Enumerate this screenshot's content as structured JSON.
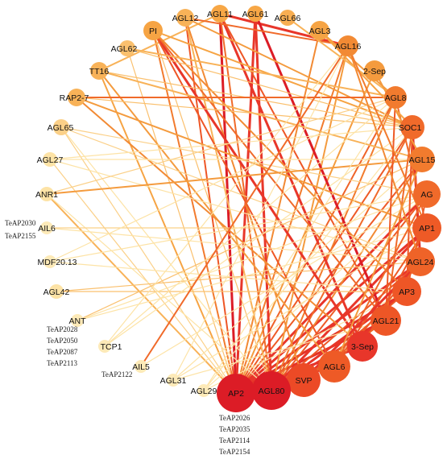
{
  "nodes": [
    {
      "id": "AGL11",
      "label": "AGL11",
      "color": "#f7a746"
    },
    {
      "id": "AGL61",
      "label": "AGL61",
      "color": "#f7a746"
    },
    {
      "id": "AGL66",
      "label": "AGL66",
      "color": "#f8ae52"
    },
    {
      "id": "AGL12",
      "label": "AGL12",
      "color": "#f8b258"
    },
    {
      "id": "PI",
      "label": "PI",
      "color": "#f6a444"
    },
    {
      "id": "AGL3",
      "label": "AGL3",
      "color": "#f6a444"
    },
    {
      "id": "AGL16",
      "label": "AGL16",
      "color": "#f28a34"
    },
    {
      "id": "AGL62",
      "label": "AGL62",
      "color": "#fac06e"
    },
    {
      "id": "2-Sep",
      "label": "2-Sep",
      "color": "#f49b3e"
    },
    {
      "id": "TT16",
      "label": "TT16",
      "color": "#f8b258"
    },
    {
      "id": "AGL8",
      "label": "AGL8",
      "color": "#f27b2e"
    },
    {
      "id": "RAP2-7",
      "label": "RAP2-7",
      "color": "#f8b258"
    },
    {
      "id": "SOC1",
      "label": "SOC1",
      "color": "#f06a2a"
    },
    {
      "id": "AGL65",
      "label": "AGL65",
      "color": "#fbd088"
    },
    {
      "id": "AGL15",
      "label": "AGL15",
      "color": "#f27b2e"
    },
    {
      "id": "AGL27",
      "label": "AGL27",
      "color": "#fde3a6"
    },
    {
      "id": "AG",
      "label": "AG",
      "color": "#f06a2a"
    },
    {
      "id": "ANR1",
      "label": "ANR1",
      "color": "#fde3a6"
    },
    {
      "id": "AP1",
      "label": "AP1",
      "color": "#ee5a26"
    },
    {
      "id": "AIL6",
      "label": "AIL6",
      "color": "#fdeab8"
    },
    {
      "id": "AGL24",
      "label": "AGL24",
      "color": "#ef6328"
    },
    {
      "id": "MDF20.13",
      "label": "MDF20.13",
      "color": "#fdeab8"
    },
    {
      "id": "AP3",
      "label": "AP3",
      "color": "#ee5626"
    },
    {
      "id": "AGL42",
      "label": "AGL42",
      "color": "#fde3a6"
    },
    {
      "id": "AGL21",
      "label": "AGL21",
      "color": "#ee5626"
    },
    {
      "id": "ANT",
      "label": "ANT",
      "color": "#fdeab8"
    },
    {
      "id": "3-Sep",
      "label": "3-Sep",
      "color": "#e8362a"
    },
    {
      "id": "TCP1",
      "label": "TCP1",
      "color": "#fdeab8"
    },
    {
      "id": "AGL6",
      "label": "AGL6",
      "color": "#ee5a26"
    },
    {
      "id": "AIL5",
      "label": "AIL5",
      "color": "#fdeab8"
    },
    {
      "id": "SVP",
      "label": "SVP",
      "color": "#ec4a26"
    },
    {
      "id": "AGL31",
      "label": "AGL31",
      "color": "#fdeab8"
    },
    {
      "id": "AGL80",
      "label": "AGL80",
      "color": "#dc1c26"
    },
    {
      "id": "AGL29",
      "label": "AGL29",
      "color": "#fdeab8"
    },
    {
      "id": "AP2",
      "label": "AP2",
      "color": "#dc1c26"
    }
  ],
  "edges": [
    [
      "AP2",
      "AGL11",
      "#dc1c26"
    ],
    [
      "AP2",
      "AGL61",
      "#e8362a"
    ],
    [
      "AP2",
      "AGL12",
      "#ee5626"
    ],
    [
      "AP2",
      "AGL3",
      "#f28a34"
    ],
    [
      "AP2",
      "AGL16",
      "#f27b2e"
    ],
    [
      "AP2",
      "2-Sep",
      "#f49b3e"
    ],
    [
      "AP2",
      "AGL8",
      "#ef6328"
    ],
    [
      "AP2",
      "SOC1",
      "#ee5a26"
    ],
    [
      "AP2",
      "AGL15",
      "#ee5a26"
    ],
    [
      "AP2",
      "AG",
      "#e8362a"
    ],
    [
      "AP2",
      "AP1",
      "#e8362a"
    ],
    [
      "AP2",
      "AGL24",
      "#e8362a"
    ],
    [
      "AP2",
      "AP3",
      "#e23027"
    ],
    [
      "AP2",
      "AGL21",
      "#e23027"
    ],
    [
      "AP2",
      "3-Sep",
      "#dc1c26"
    ],
    [
      "AP2",
      "AGL6",
      "#e23027"
    ],
    [
      "AP2",
      "SVP",
      "#dc1c26"
    ],
    [
      "AP2",
      "TT16",
      "#f6a444"
    ],
    [
      "AP2",
      "ANR1",
      "#f8b258"
    ],
    [
      "AP2",
      "AGL27",
      "#fbd088"
    ],
    [
      "AP2",
      "AGL65",
      "#fbd088"
    ],
    [
      "AP2",
      "PI",
      "#f27b2e"
    ],
    [
      "AP2",
      "AGL62",
      "#fac06e"
    ],
    [
      "AGL80",
      "AGL11",
      "#f06a2a"
    ],
    [
      "AGL80",
      "SOC1",
      "#f06a2a"
    ],
    [
      "AGL80",
      "AGL8",
      "#f27b2e"
    ],
    [
      "AGL80",
      "AGL15",
      "#f28a34"
    ],
    [
      "AGL80",
      "AGL16",
      "#f49b3e"
    ],
    [
      "AGL80",
      "AP1",
      "#e8362a"
    ],
    [
      "AGL80",
      "AGL24",
      "#ee5626"
    ],
    [
      "AGL80",
      "AP3",
      "#e8362a"
    ],
    [
      "AGL80",
      "AGL21",
      "#e8362a"
    ],
    [
      "AGL80",
      "PI",
      "#fac06e"
    ],
    [
      "AGL80",
      "ANR1",
      "#fde3a6"
    ],
    [
      "AGL80",
      "AGL65",
      "#fde3a6"
    ],
    [
      "AGL80",
      "AGL12",
      "#f8b258"
    ],
    [
      "AGL80",
      "AG",
      "#ee5a26"
    ],
    [
      "AGL11",
      "AGL16",
      "#e8362a"
    ],
    [
      "AGL11",
      "3-Sep",
      "#e8362a"
    ],
    [
      "AGL11",
      "AGL21",
      "#ee5626"
    ],
    [
      "AGL11",
      "TT16",
      "#f8b258"
    ],
    [
      "AGL61",
      "AGL21",
      "#dc1c26"
    ],
    [
      "AGL61",
      "AGL80",
      "#e8362a"
    ],
    [
      "AGL12",
      "AGL16",
      "#f06a2a"
    ],
    [
      "AGL12",
      "SVP",
      "#f28a34"
    ],
    [
      "AGL12",
      "SOC1",
      "#f49b3e"
    ],
    [
      "PI",
      "3-Sep",
      "#e8362a"
    ],
    [
      "PI",
      "AGL6",
      "#ee5626"
    ],
    [
      "PI",
      "AGL21",
      "#f06a2a"
    ],
    [
      "PI",
      "AP3",
      "#f28a34"
    ],
    [
      "PI",
      "SOC1",
      "#f6a444"
    ],
    [
      "AGL62",
      "AGL8",
      "#f8b258"
    ],
    [
      "AGL62",
      "SOC1",
      "#fac06e"
    ],
    [
      "TT16",
      "SOC1",
      "#fac06e"
    ],
    [
      "TT16",
      "AGL6",
      "#f49b3e"
    ],
    [
      "TT16",
      "AGL15",
      "#f8b258"
    ],
    [
      "RAP2-7",
      "AGL8",
      "#f06a2a"
    ],
    [
      "RAP2-7",
      "SOC1",
      "#fac06e"
    ],
    [
      "RAP2-7",
      "AP1",
      "#f49b3e"
    ],
    [
      "RAP2-7",
      "3-Sep",
      "#f28a34"
    ],
    [
      "AGL65",
      "AG",
      "#fbd088"
    ],
    [
      "AGL65",
      "AGL24",
      "#fbd088"
    ],
    [
      "AGL27",
      "SOC1",
      "#fde3a6"
    ],
    [
      "AGL27",
      "AGL24",
      "#fde3a6"
    ],
    [
      "AGL27",
      "AGL15",
      "#fde3a6"
    ],
    [
      "ANR1",
      "AGL15",
      "#f49b3e"
    ],
    [
      "ANR1",
      "AGL8",
      "#fbd088"
    ],
    [
      "AIL6",
      "AP1",
      "#fbd088"
    ],
    [
      "AIL6",
      "AGL24",
      "#fde3a6"
    ],
    [
      "MDF20.13",
      "AG",
      "#fde3a6"
    ],
    [
      "MDF20.13",
      "AGL8",
      "#fde3a6"
    ],
    [
      "MDF20.13",
      "AP3",
      "#fde3a6"
    ],
    [
      "AGL42",
      "AGL24",
      "#fac06e"
    ],
    [
      "AGL42",
      "AP3",
      "#fac06e"
    ],
    [
      "ANT",
      "AGL15",
      "#fac06e"
    ],
    [
      "ANT",
      "AP1",
      "#fde3a6"
    ],
    [
      "ANT",
      "AG",
      "#fde3a6"
    ],
    [
      "TCP1",
      "AGL8",
      "#fde3a6"
    ],
    [
      "TCP1",
      "SOC1",
      "#fde3a6"
    ],
    [
      "TCP1",
      "AGL16",
      "#fde3a6"
    ],
    [
      "AIL5",
      "AGL16",
      "#f06a2a"
    ],
    [
      "AIL5",
      "AG",
      "#fde3a6"
    ],
    [
      "AGL31",
      "AGL15",
      "#fde3a6"
    ],
    [
      "AGL31",
      "AP1",
      "#fde3a6"
    ],
    [
      "AGL31",
      "AGL16",
      "#fde3a6"
    ],
    [
      "AGL31",
      "AGL21",
      "#fde3a6"
    ],
    [
      "AGL29",
      "AG",
      "#fde3a6"
    ],
    [
      "AGL29",
      "AGL8",
      "#fde3a6"
    ],
    [
      "AGL29",
      "SOC1",
      "#fde3a6"
    ],
    [
      "AGL29",
      "AP3",
      "#fde3a6"
    ],
    [
      "SOC1",
      "AGL24",
      "#e23027"
    ],
    [
      "SOC1",
      "AP3",
      "#ee5626"
    ],
    [
      "SOC1",
      "AGL21",
      "#f06a2a"
    ],
    [
      "AGL8",
      "AGL21",
      "#ee5a26"
    ],
    [
      "AGL8",
      "AP1",
      "#f06a2a"
    ],
    [
      "AG",
      "AP3",
      "#ee5a26"
    ],
    [
      "AG",
      "AGL6",
      "#f06a2a"
    ],
    [
      "AP1",
      "AGL6",
      "#ee5a26"
    ],
    [
      "AP1",
      "3-Sep",
      "#ee5626"
    ],
    [
      "AGL24",
      "SVP",
      "#e8362a"
    ],
    [
      "AGL24",
      "AGL6",
      "#ee5a26"
    ],
    [
      "AP3",
      "SVP",
      "#ee5a26"
    ],
    [
      "AGL21",
      "SVP",
      "#ef6328"
    ],
    [
      "AGL3",
      "AGL8",
      "#f49b3e"
    ],
    [
      "AGL3",
      "SOC1",
      "#f6a444"
    ],
    [
      "AGL66",
      "AGL8",
      "#f8b258"
    ],
    [
      "2-Sep",
      "AGL15",
      "#f49b3e"
    ],
    [
      "AGL16",
      "AGL24",
      "#f28a34"
    ],
    [
      "AGL15",
      "AGL6",
      "#f49b3e"
    ],
    [
      "AGL16",
      "AP1",
      "#f27b2e"
    ]
  ],
  "annotations": {
    "ail6": [
      "TeAP2030",
      "TeAP2155"
    ],
    "ant": [
      "TeAP2028",
      "TeAP2050",
      "TeAP2087",
      "TeAP2113"
    ],
    "ail5": [
      "TeAP2122"
    ],
    "ap2": [
      "TeAP2026",
      "TeAP2035",
      "TeAP2114",
      "TeAP2154"
    ]
  }
}
